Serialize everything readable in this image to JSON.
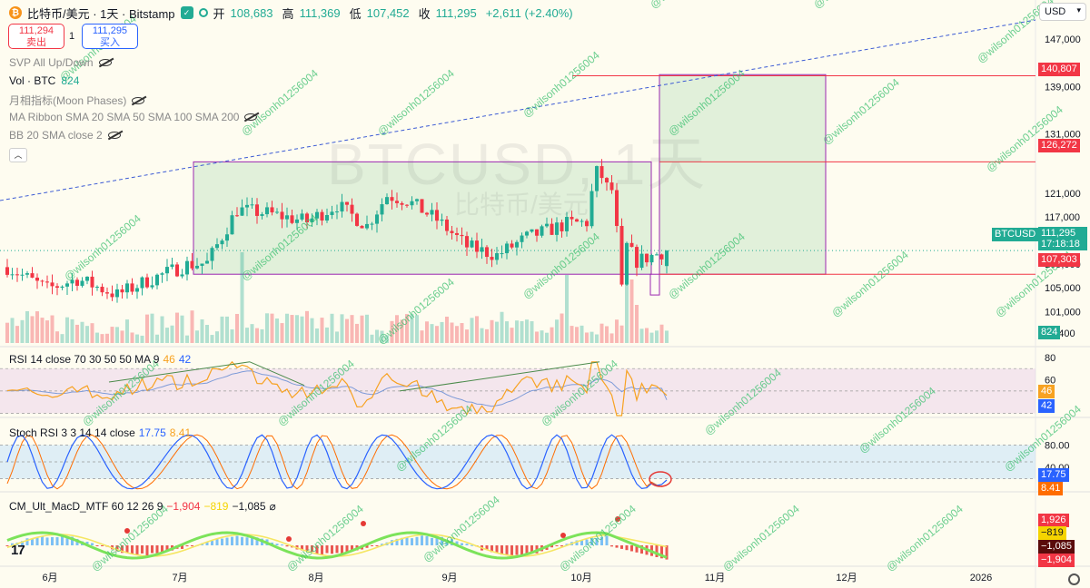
{
  "header": {
    "coin_glyph": "₿",
    "title": "比特币/美元 · 1天 · Bitstamp",
    "open_label": "开",
    "open": "108,683",
    "high_label": "高",
    "high": "111,369",
    "low_label": "低",
    "low": "107,452",
    "close_label": "收",
    "close": "111,295",
    "change": "+2,611 (+2.40%)"
  },
  "quote": {
    "sell_price": "111,294",
    "sell_label": "卖出",
    "spread": "1",
    "buy_price": "111,295",
    "buy_label": "买入"
  },
  "legends": [
    {
      "name": "SVP All Up/Down",
      "value": "",
      "hidden": true
    },
    {
      "name": "Vol · BTC",
      "value": "824",
      "hidden": false
    },
    {
      "name": "月相指标(Moon Phases)",
      "value": "",
      "hidden": true
    },
    {
      "name": "MA Ribbon SMA 20 SMA 50 SMA 100 SMA 200",
      "value": "",
      "hidden": true
    },
    {
      "name": "BB 20 SMA close 2",
      "value": "",
      "hidden": true
    }
  ],
  "collapse_glyph": "︿",
  "currency": "USD",
  "currency_caret": "▾",
  "chart_watermark": {
    "symbol": "BTCUSD, 1天",
    "name": "比特币/美元"
  },
  "colors": {
    "up": "#22ab94",
    "down": "#f23645",
    "box_fill": "#c8e6c9",
    "box_stroke": "#9c27b0",
    "rsi_line": "#f7a221",
    "rsi_ma": "#7e9bd8",
    "stoch_k": "#2962ff",
    "stoch_d": "#ff6d00"
  },
  "price_axis": {
    "ticks": [
      "147,000",
      "139,000",
      "131,000",
      "126,272",
      "121,000",
      "117,000",
      "113,000",
      "109,000",
      "105,000",
      "101,000",
      "97,400"
    ]
  },
  "price_labels": {
    "upper_target": "140,807",
    "upper_line": "126,272",
    "symbol": "BTCUSD",
    "current": "111,295",
    "countdown": "17:18:18",
    "lower_line": "107,303",
    "volume": "824"
  },
  "time_axis": [
    "6月",
    "7月",
    "8月",
    "9月",
    "10月",
    "11月",
    "12月",
    "2026"
  ],
  "rsi": {
    "title": "RSI 14 close 70 30 50 50 MA 9",
    "value1": "46",
    "value2": "42",
    "ticks": [
      "80",
      "60"
    ],
    "label1": "46",
    "label2": "42"
  },
  "stoch": {
    "title": "Stoch RSI 3 3 14 14 close",
    "k": "17.75",
    "d": "8.41",
    "ticks": [
      "80.00",
      "40.00"
    ],
    "label_k": "17.75",
    "label_d": "8.41"
  },
  "macd": {
    "title": "CM_Ult_MacD_MTF 60 12 26 9",
    "v1": "−1,904",
    "v2": "−819",
    "v3": "−1,085",
    "extra": "⌀",
    "labels": [
      "1,926",
      "−819",
      "−1,085",
      "−1,904"
    ]
  },
  "tradingview_logo": "17",
  "repeated_watermark": "@wilsonh01256004",
  "chart_data": {
    "type": "candlestick",
    "interval": "1 day",
    "symbol": "BTCUSD",
    "exchange": "Bitstamp",
    "x_axis": [
      "6月",
      "7月",
      "8月",
      "9月",
      "10月",
      "11月",
      "12月",
      "2026"
    ],
    "last": {
      "open": 108683,
      "high": 111369,
      "low": 107452,
      "close": 111295,
      "change": 2611,
      "change_pct": 2.4
    },
    "levels": {
      "upper_target": 140807,
      "resistance": 126272,
      "support": 107303
    },
    "rsi": {
      "period": 14,
      "value": 46,
      "ma": 42,
      "bands": [
        70,
        30,
        50
      ]
    },
    "stoch_rsi": {
      "k": 17.75,
      "d": 8.41,
      "bands": [
        80,
        20
      ]
    },
    "macd": {
      "fast": 12,
      "slow": 26,
      "signal": 9,
      "macd": -1904,
      "signal_value": -819,
      "hist": -1085
    }
  }
}
